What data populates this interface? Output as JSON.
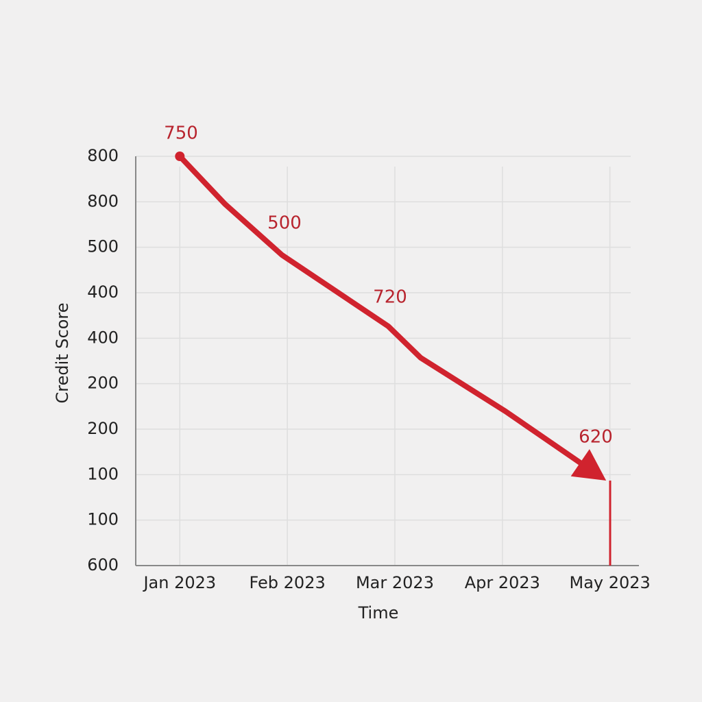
{
  "chart_data": {
    "type": "line",
    "x_label": "Time",
    "y_label": "Credit Score",
    "xlim": [
      0.59,
      5.27
    ],
    "ylim": [
      0,
      9
    ],
    "xticks": [
      {
        "value": 1,
        "label": "Jan 2023"
      },
      {
        "value": 2,
        "label": "Feb 2023"
      },
      {
        "value": 3,
        "label": "Mar 2023"
      },
      {
        "value": 4,
        "label": "Apr 2023"
      },
      {
        "value": 5,
        "label": "May 2023"
      }
    ],
    "yticks": [
      {
        "value": 0,
        "label": "600"
      },
      {
        "value": 1,
        "label": "100"
      },
      {
        "value": 2,
        "label": "100"
      },
      {
        "value": 3,
        "label": "200"
      },
      {
        "value": 4,
        "label": "200"
      },
      {
        "value": 5,
        "label": "400"
      },
      {
        "value": 6,
        "label": "400"
      },
      {
        "value": 7,
        "label": "500"
      },
      {
        "value": 8,
        "label": "800"
      },
      {
        "value": 9,
        "label": "800"
      }
    ],
    "grid": true,
    "series": [
      {
        "color": "#d0232e",
        "x": [
          1,
          1.42,
          1.95,
          2.94,
          3.24,
          4.03,
          4.86
        ],
        "values": [
          9,
          7.95,
          6.83,
          5.26,
          4.57,
          3.39,
          2.04
        ]
      }
    ],
    "annotations": [
      "750",
      "500",
      "720",
      "620"
    ]
  }
}
